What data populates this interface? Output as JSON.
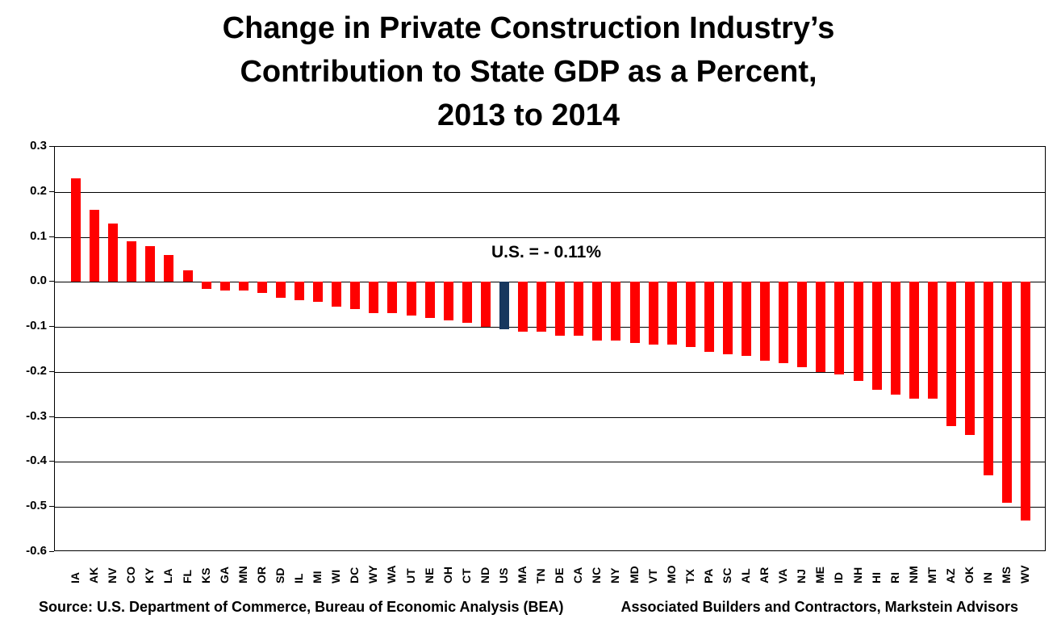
{
  "title_lines": [
    "Change in Private Construction Industry’s",
    "Contribution to State GDP as a Percent,",
    "2013 to 2014"
  ],
  "annotation_label": "U.S. = - 0.11%",
  "source_left": "Source: U.S. Department of Commerce, Bureau of Economic Analysis (BEA)",
  "source_right": "Associated Builders and Contractors, Markstein Advisors",
  "colors": {
    "bar": "#FF0000",
    "highlight_bar": "#17375E",
    "grid": "#000000",
    "text": "#000000",
    "background": "#FFFFFF"
  },
  "chart_data": {
    "type": "bar",
    "title": "Change in Private Construction Industry's Contribution to State GDP as a Percent, 2013 to 2014",
    "xlabel": "",
    "ylabel": "",
    "ylim": [
      -0.6,
      0.3
    ],
    "yticks": [
      0.3,
      0.2,
      0.1,
      0.0,
      -0.1,
      -0.2,
      -0.3,
      -0.4,
      -0.5,
      -0.6
    ],
    "ytick_labels": [
      "0.3",
      "0.2",
      "0.1",
      "0.0",
      "-0.1",
      "-0.2",
      "-0.3",
      "-0.4",
      "-0.5",
      "-0.6"
    ],
    "grid": true,
    "legend": "none",
    "annotation": {
      "text": "U.S. = - 0.11%",
      "target_category": "US"
    },
    "highlight_category": "US",
    "categories": [
      "IA",
      "AK",
      "NV",
      "CO",
      "KY",
      "LA",
      "FL",
      "KS",
      "GA",
      "MN",
      "OR",
      "SD",
      "IL",
      "MI",
      "WI",
      "DC",
      "WY",
      "WA",
      "UT",
      "NE",
      "OH",
      "CT",
      "ND",
      "US",
      "MA",
      "TN",
      "DE",
      "CA",
      "NC",
      "NY",
      "MD",
      "VT",
      "MO",
      "TX",
      "PA",
      "SC",
      "AL",
      "AR",
      "VA",
      "NJ",
      "ME",
      "ID",
      "NH",
      "HI",
      "RI",
      "NM",
      "MT",
      "AZ",
      "OK",
      "IN",
      "MS",
      "WV"
    ],
    "values": [
      0.23,
      0.16,
      0.13,
      0.09,
      0.08,
      0.06,
      0.025,
      -0.015,
      -0.02,
      -0.02,
      -0.025,
      -0.035,
      -0.04,
      -0.045,
      -0.055,
      -0.06,
      -0.07,
      -0.07,
      -0.075,
      -0.08,
      -0.085,
      -0.09,
      -0.1,
      -0.105,
      -0.11,
      -0.11,
      -0.12,
      -0.12,
      -0.13,
      -0.13,
      -0.135,
      -0.14,
      -0.14,
      -0.145,
      -0.155,
      -0.16,
      -0.165,
      -0.175,
      -0.18,
      -0.19,
      -0.2,
      -0.205,
      -0.22,
      -0.24,
      -0.25,
      -0.26,
      -0.26,
      -0.32,
      -0.34,
      -0.43,
      -0.49,
      -0.53
    ]
  }
}
